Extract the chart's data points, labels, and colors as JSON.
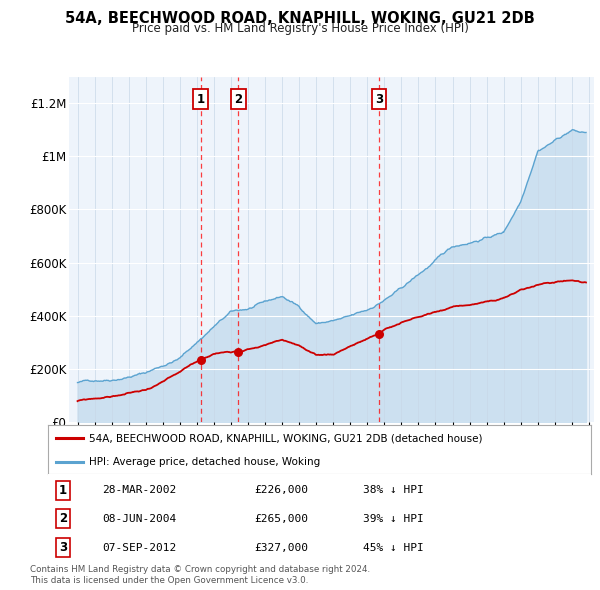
{
  "title": "54A, BEECHWOOD ROAD, KNAPHILL, WOKING, GU21 2DB",
  "subtitle": "Price paid vs. HM Land Registry's House Price Index (HPI)",
  "legend_line1": "54A, BEECHWOOD ROAD, KNAPHILL, WOKING, GU21 2DB (detached house)",
  "legend_line2": "HPI: Average price, detached house, Woking",
  "footer1": "Contains HM Land Registry data © Crown copyright and database right 2024.",
  "footer2": "This data is licensed under the Open Government Licence v3.0.",
  "transactions": [
    {
      "label": "1",
      "date": "28-MAR-2002",
      "price": 226000,
      "pct": "38%",
      "x_year": 2002.23
    },
    {
      "label": "2",
      "date": "08-JUN-2004",
      "price": 265000,
      "pct": "39%",
      "x_year": 2004.44
    },
    {
      "label": "3",
      "date": "07-SEP-2012",
      "price": 327000,
      "pct": "45%",
      "x_year": 2012.69
    }
  ],
  "hpi_color": "#5ba3d0",
  "hpi_fill_color": "#c8dff0",
  "price_color": "#cc0000",
  "ylim": [
    0,
    1300000
  ],
  "xlim_start": 1994.5,
  "xlim_end": 2025.3
}
